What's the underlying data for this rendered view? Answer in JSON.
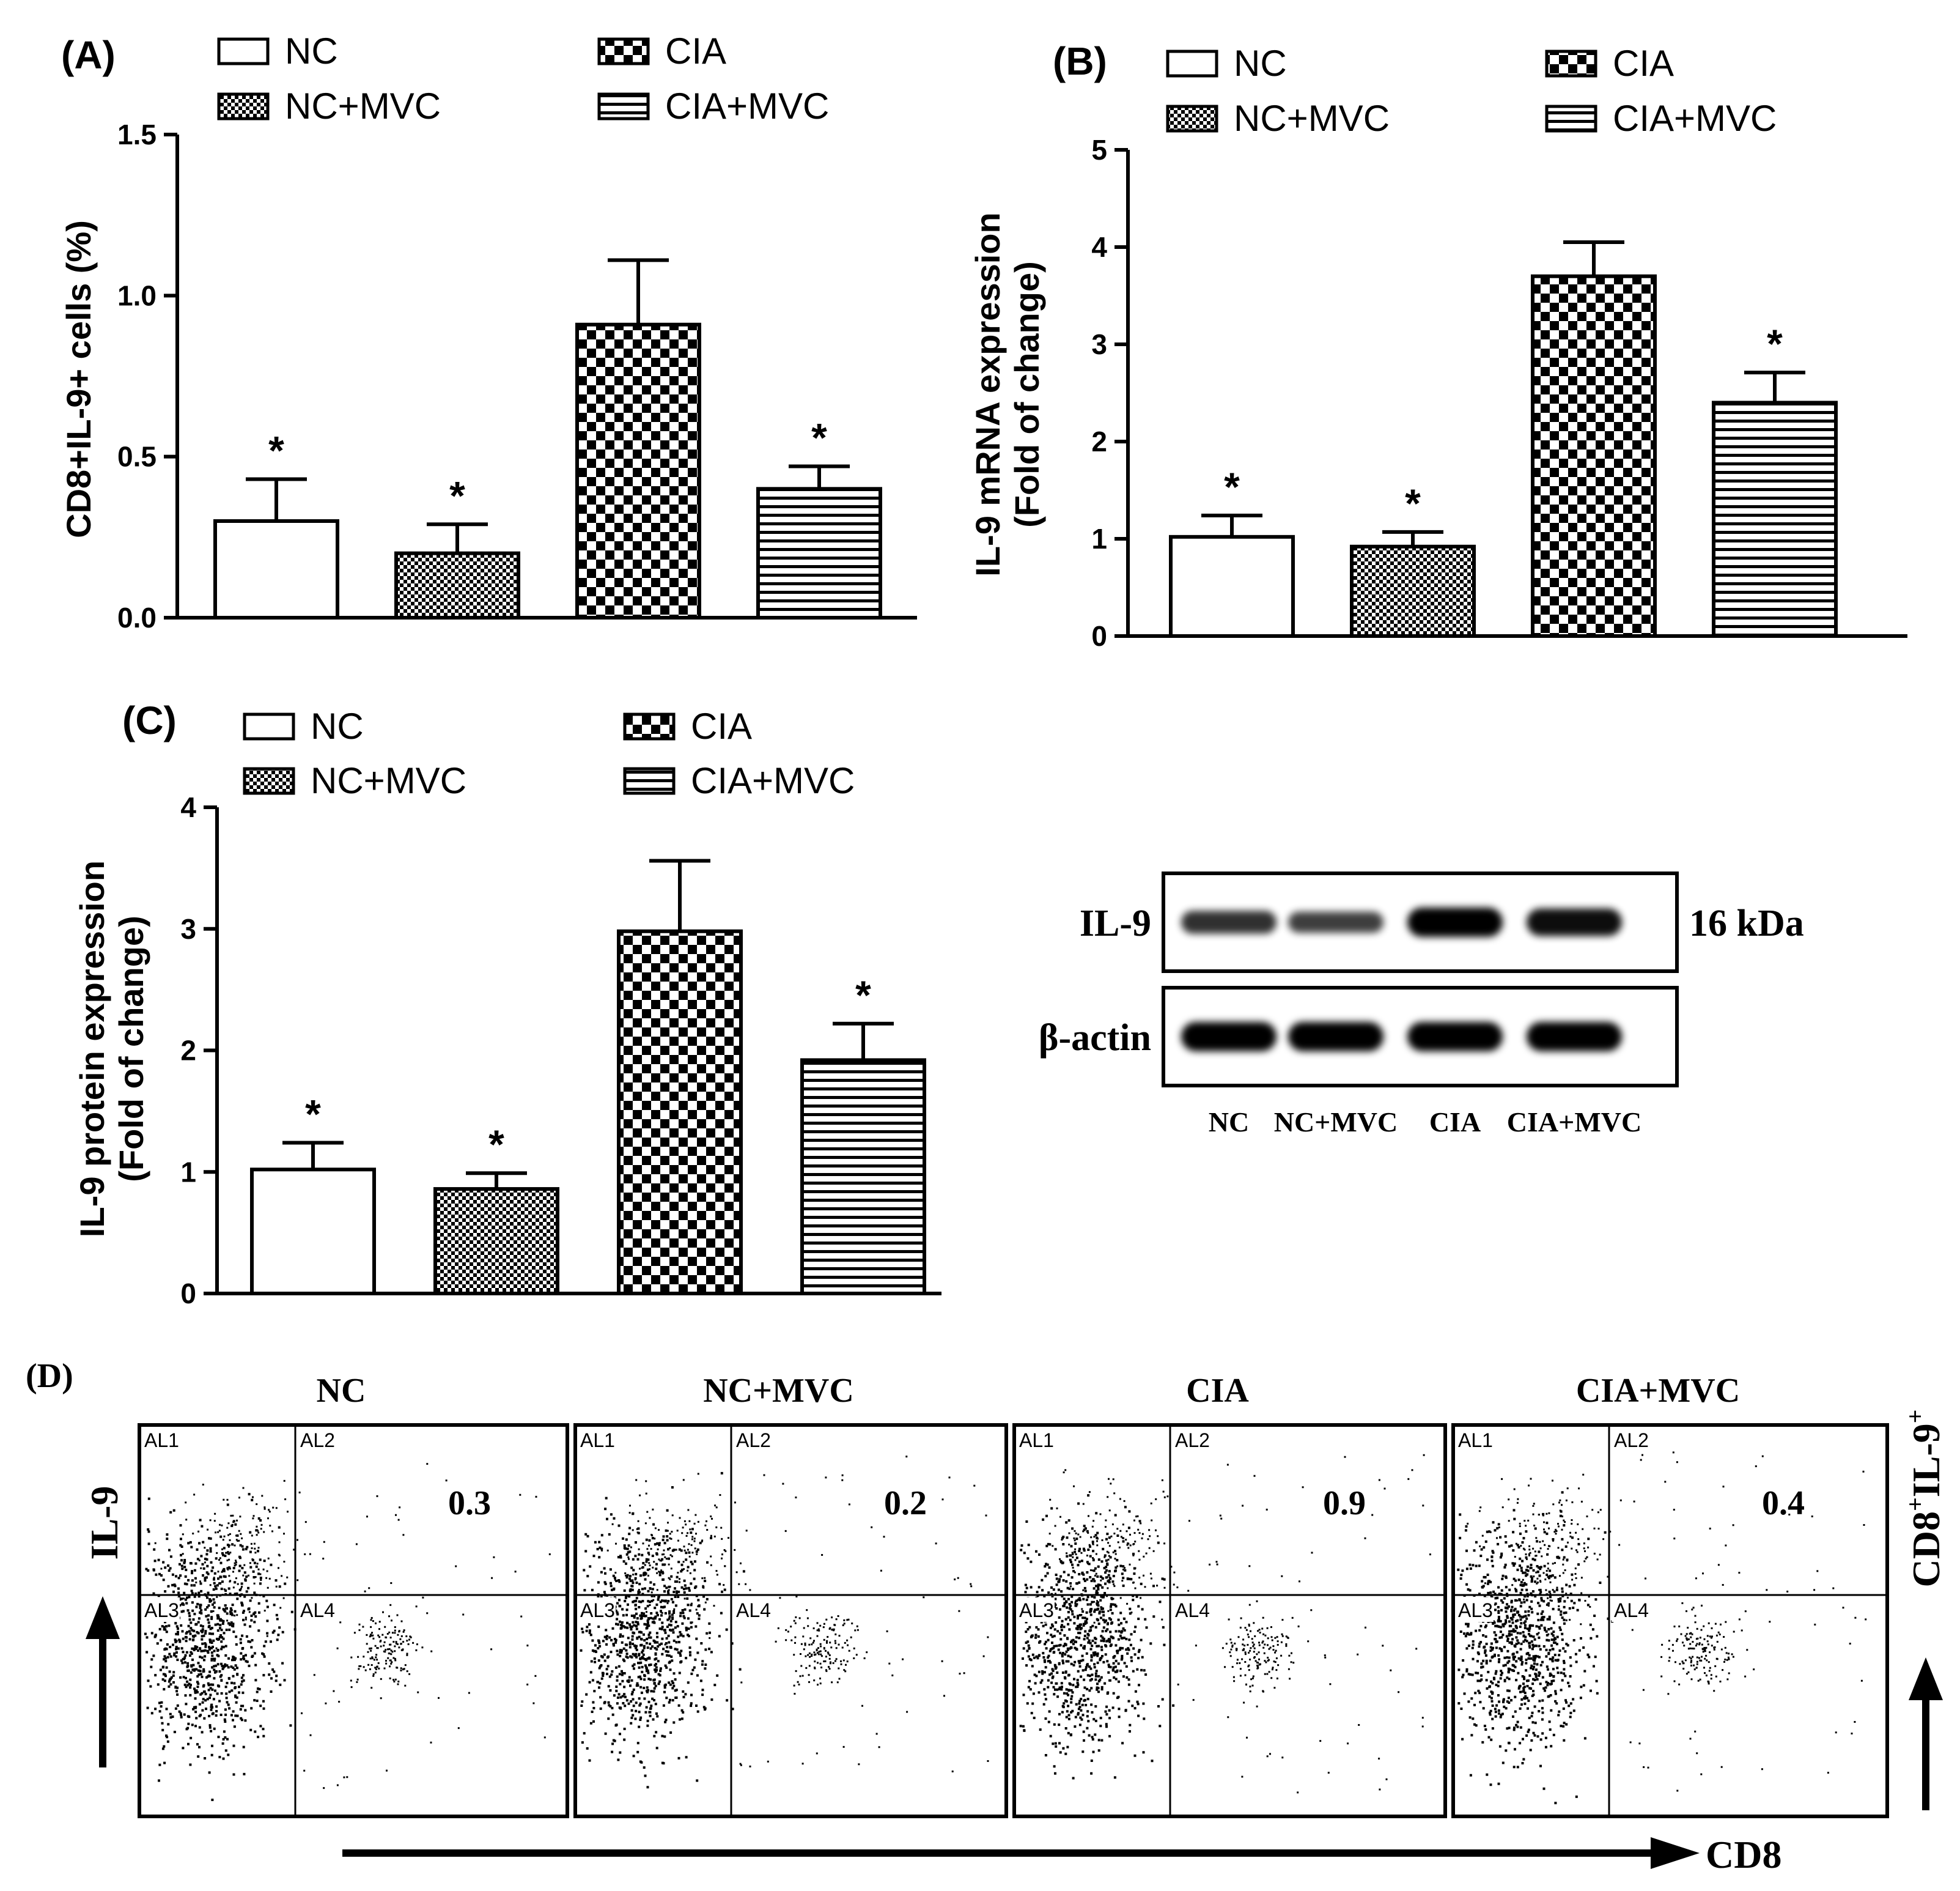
{
  "chart_data": [
    {
      "type": "bar",
      "panel_label": "(A)",
      "ylabel": "CD8+IL-9+ cells (%)",
      "xlabel": "",
      "ylim": [
        0,
        1.5
      ],
      "yticks": [
        "0.0",
        "0.5",
        "1.0",
        "1.5"
      ],
      "categories": [
        "NC",
        "NC+MVC",
        "CIA",
        "CIA+MVC"
      ],
      "values": [
        0.3,
        0.2,
        0.91,
        0.4
      ],
      "errors": [
        0.13,
        0.09,
        0.2,
        0.07
      ],
      "significance": [
        "*",
        "*",
        "",
        "*"
      ],
      "legend": [
        "NC",
        "NC+MVC",
        "CIA",
        "CIA+MVC"
      ]
    },
    {
      "type": "bar",
      "panel_label": "(B)",
      "ylabel": "IL-9 mRNA expression",
      "ylabel2": "(Fold of change)",
      "xlabel": "",
      "ylim": [
        0,
        5
      ],
      "yticks": [
        "0",
        "1",
        "2",
        "3",
        "4",
        "5"
      ],
      "categories": [
        "NC",
        "NC+MVC",
        "CIA",
        "CIA+MVC"
      ],
      "values": [
        1.02,
        0.92,
        3.7,
        2.4
      ],
      "errors": [
        0.22,
        0.15,
        0.35,
        0.31
      ],
      "significance": [
        "*",
        "*",
        "",
        "*"
      ],
      "legend": [
        "NC",
        "NC+MVC",
        "CIA",
        "CIA+MVC"
      ]
    },
    {
      "type": "bar",
      "panel_label": "(C)",
      "ylabel": "IL-9 protein expression",
      "ylabel2": "(Fold of change)",
      "xlabel": "",
      "ylim": [
        0,
        4
      ],
      "yticks": [
        "0",
        "1",
        "2",
        "3",
        "4"
      ],
      "categories": [
        "NC",
        "NC+MVC",
        "CIA",
        "CIA+MVC"
      ],
      "values": [
        1.02,
        0.86,
        2.98,
        1.92
      ],
      "errors": [
        0.22,
        0.13,
        0.58,
        0.3
      ],
      "significance": [
        "*",
        "*",
        "",
        "*"
      ],
      "legend": [
        "NC",
        "NC+MVC",
        "CIA",
        "CIA+MVC"
      ]
    }
  ],
  "western_blot": {
    "rows": [
      {
        "label": "IL-9",
        "size": "16 kDa",
        "intensity": [
          0.65,
          0.55,
          1.0,
          0.9
        ]
      },
      {
        "label": "β-actin",
        "size": "",
        "intensity": [
          1.0,
          1.0,
          1.0,
          1.0
        ]
      }
    ],
    "lanes": [
      "NC",
      "NC+MVC",
      "CIA",
      "CIA+MVC"
    ]
  },
  "flow": {
    "panel_label": "(D)",
    "ylabel": "IL-9",
    "xlabel": "CD8",
    "right_label": "CD8",
    "right_sup1": "+",
    "right_mid": "IL-9",
    "right_sup2": "+",
    "quadrants": [
      "AL1",
      "AL2",
      "AL3",
      "AL4"
    ],
    "plots": [
      {
        "title": "NC",
        "value": "0.3"
      },
      {
        "title": "NC+MVC",
        "value": "0.2"
      },
      {
        "title": "CIA",
        "value": "0.9"
      },
      {
        "title": "CIA+MVC",
        "value": "0.4"
      }
    ]
  },
  "colors": {
    "ink": "#000000",
    "paper": "#ffffff"
  }
}
